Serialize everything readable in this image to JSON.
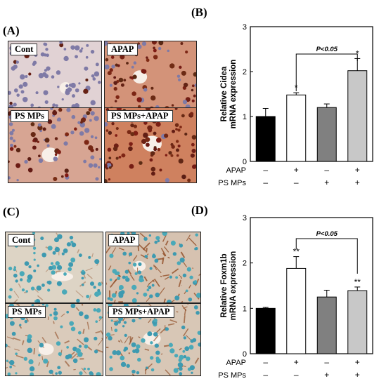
{
  "figure": {
    "panels": {
      "a": "(A)",
      "b": "(B)",
      "c": "(C)",
      "d": "(D)"
    },
    "micrographs_a": [
      {
        "label": "Cont",
        "stain": "nuclear-brown",
        "intensity": 0.05
      },
      {
        "label": "APAP",
        "stain": "nuclear-brown",
        "intensity": 0.75
      },
      {
        "label": "PS MPs",
        "stain": "nuclear-brown",
        "intensity": 0.55
      },
      {
        "label": "PS MPs+APAP",
        "stain": "nuclear-brown",
        "intensity": 0.95
      }
    ],
    "micrographs_c": [
      {
        "label": "Cont",
        "stain": "membrane-brown",
        "intensity": 0.1
      },
      {
        "label": "APAP",
        "stain": "membrane-brown",
        "intensity": 0.8
      },
      {
        "label": "PS MPs",
        "stain": "membrane-brown",
        "intensity": 0.45
      },
      {
        "label": "PS MPs+APAP",
        "stain": "membrane-brown",
        "intensity": 0.6
      }
    ]
  },
  "chart_data": [
    {
      "type": "bar",
      "panel": "B",
      "categories": [
        "1",
        "2",
        "3",
        "4"
      ],
      "values": [
        1.0,
        1.48,
        1.2,
        2.02
      ],
      "errors": [
        0.18,
        0.05,
        0.08,
        0.27
      ],
      "bar_colors": [
        "#000000",
        "#ffffff",
        "#808080",
        "#c8c8c8"
      ],
      "ylabel_line1": "Relative Cidea",
      "ylabel_line2": "mRNA expression",
      "ylim": [
        0,
        3
      ],
      "yticks": [
        "0",
        "1",
        "2",
        "3"
      ],
      "significance": [
        "",
        "*",
        "",
        "*"
      ],
      "bracket": {
        "from": 1,
        "to": 3,
        "label": "P<0.05"
      },
      "treatments": [
        {
          "name": "APAP",
          "signs": [
            "–",
            "+",
            "–",
            "+"
          ]
        },
        {
          "name": "PS MPs",
          "signs": [
            "–",
            "–",
            "+",
            "+"
          ]
        }
      ]
    },
    {
      "type": "bar",
      "panel": "D",
      "categories": [
        "1",
        "2",
        "3",
        "4"
      ],
      "values": [
        1.0,
        1.88,
        1.25,
        1.39
      ],
      "errors": [
        0.02,
        0.26,
        0.15,
        0.08
      ],
      "bar_colors": [
        "#000000",
        "#ffffff",
        "#808080",
        "#c8c8c8"
      ],
      "ylabel_line1": "Relative Foxm1b",
      "ylabel_line2": "mRNA expression",
      "ylim": [
        0,
        3
      ],
      "yticks": [
        "0",
        "1",
        "2",
        "3"
      ],
      "significance": [
        "",
        "**",
        "",
        "**"
      ],
      "bracket": {
        "from": 1,
        "to": 3,
        "label": "P<0.05"
      },
      "treatments": [
        {
          "name": "APAP",
          "signs": [
            "–",
            "+",
            "–",
            "+"
          ]
        },
        {
          "name": "PS MPs",
          "signs": [
            "–",
            "–",
            "+",
            "+"
          ]
        }
      ]
    }
  ]
}
